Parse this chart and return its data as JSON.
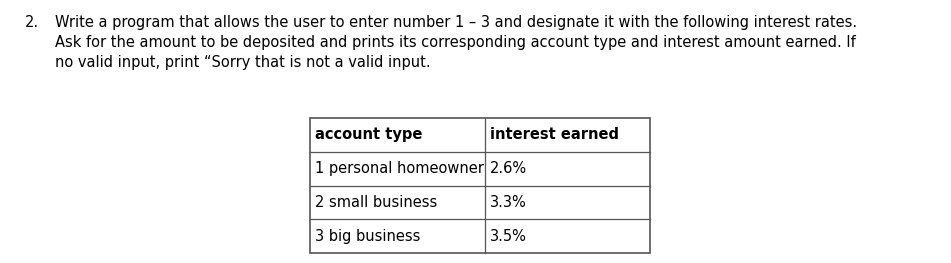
{
  "title_number": "2.",
  "line1": "Write a program that allows the user to enter number 1 – 3 and designate it with the following interest rates.",
  "line2": "Ask for the amount to be deposited and prints its corresponding account type and interest amount earned. If",
  "line3": "no valid input, print “Sorry that is not a valid input.",
  "table_headers": [
    "account type",
    "interest earned"
  ],
  "table_rows": [
    [
      "1 personal homeowner",
      "2.6%"
    ],
    [
      "2 small business",
      "3.3%"
    ],
    [
      "3 big business",
      "3.5%"
    ]
  ],
  "bg_color": "#ffffff",
  "text_color": "#000000",
  "font_size_body": 10.5,
  "font_size_table": 10.5
}
